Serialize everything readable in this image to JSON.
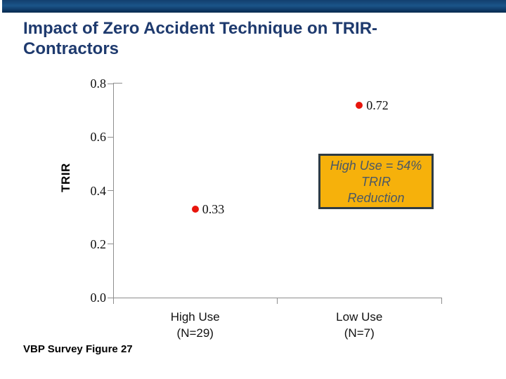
{
  "slide": {
    "title_line1": "Impact of Zero Accident Technique on TRIR-",
    "title_line2": "Contractors",
    "footer": "VBP Survey Figure 27",
    "title_color": "#1e3a6e",
    "accent_bar_color": "#14467a"
  },
  "chart_data": {
    "type": "scatter",
    "title": "Impact of Zero Accident Technique on TRIR-Contractors",
    "xlabel": "",
    "ylabel": "TRIR",
    "categories": [
      "High Use (N=29)",
      "Low Use (N=7)"
    ],
    "category_lines": [
      [
        "High Use",
        "(N=29)"
      ],
      [
        "Low Use",
        "(N=7)"
      ]
    ],
    "values": [
      0.33,
      0.72
    ],
    "point_labels": [
      "0.33",
      "0.72"
    ],
    "yticks": [
      0.8,
      0.6,
      0.4,
      0.2,
      0.0
    ],
    "ytick_labels": [
      "0.8",
      "0.6",
      "0.4",
      "0.2",
      "0.0"
    ],
    "ylim": [
      0,
      0.8
    ],
    "grid": false,
    "legend": "none",
    "marker_color": "#e8150c",
    "axis_color": "#8e8e8e"
  },
  "annotation": {
    "lines": [
      "High Use = 54%",
      "TRIR",
      "Reduction"
    ],
    "bg_color": "#f6b10b",
    "border_color": "#2e3b44",
    "text_color": "#4a5866"
  }
}
